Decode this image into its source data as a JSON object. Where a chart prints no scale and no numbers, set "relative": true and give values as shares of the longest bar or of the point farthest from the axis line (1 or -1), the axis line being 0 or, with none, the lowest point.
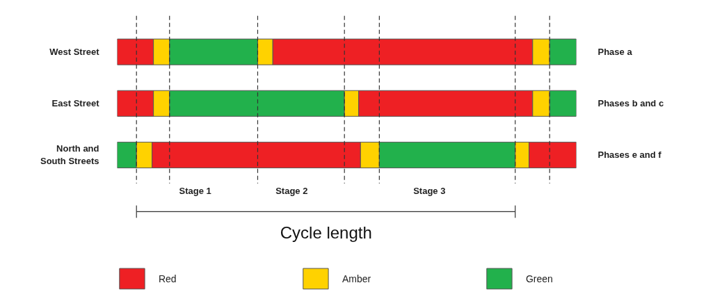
{
  "chart_data": {
    "type": "bar",
    "orientation": "horizontal",
    "stacked": true,
    "relative": true,
    "categories": [
      "West Street",
      "East Street",
      "North and South Streets"
    ],
    "series": [
      {
        "colors": [
          "#ee2024",
          "#ee2024",
          "#22b14c"
        ],
        "values": [
          0.079,
          0.079,
          0.042
        ]
      },
      {
        "colors": [
          "#ffd200",
          "#ffd200",
          "#ffd200"
        ],
        "values": [
          0.035,
          0.035,
          0.034
        ]
      },
      {
        "colors": [
          "#22b14c",
          "#22b14c",
          "#ee2024"
        ],
        "values": [
          0.192,
          0.381,
          0.454
        ]
      },
      {
        "colors": [
          "#ffd200",
          "#ffd200",
          "#ffd200"
        ],
        "values": [
          0.033,
          0.031,
          0.041
        ]
      },
      {
        "colors": [
          "#ee2024",
          "#ee2024",
          "#22b14c"
        ],
        "values": [
          0.566,
          0.379,
          0.296
        ]
      },
      {
        "colors": [
          "#ffd200",
          "#ffd200",
          "#ffd200"
        ],
        "values": [
          0.037,
          0.037,
          0.03
        ]
      },
      {
        "colors": [
          "#22b14c",
          "#22b14c",
          "#ee2024"
        ],
        "values": [
          0.058,
          0.058,
          0.103
        ]
      },
      {
        "name": "Red",
        "color": "#ee2024",
        "values": [
          null,
          null,
          null
        ]
      },
      {
        "name": "Amber",
        "color": "#ffd200",
        "values": [
          null,
          null,
          null
        ]
      },
      {
        "name": "Green",
        "color": "#22b14c",
        "values": [
          null,
          null,
          null
        ]
      }
    ],
    "ref_lines": [
      {
        "axis": "x",
        "value": 0.042,
        "line_style": "dashed",
        "color": "#333333"
      },
      {
        "axis": "x",
        "value": 0.114,
        "line_style": "dashed",
        "color": "#333333"
      },
      {
        "axis": "x",
        "value": 0.306,
        "line_style": "dashed",
        "color": "#333333"
      },
      {
        "axis": "x",
        "value": 0.495,
        "line_style": "dashed",
        "color": "#333333"
      },
      {
        "axis": "x",
        "value": 0.571,
        "line_style": "dashed",
        "color": "#333333"
      },
      {
        "axis": "x",
        "value": 0.867,
        "line_style": "dashed",
        "color": "#333333"
      },
      {
        "axis": "x",
        "value": 0.942,
        "line_style": "dashed",
        "color": "#333333"
      }
    ],
    "annotations": [
      "Phase a",
      "Phases b and c",
      "Phases e and f",
      "Stage 1",
      "Stage 2",
      "Stage 3",
      "Cycle length"
    ],
    "legend": "bottom"
  }
}
